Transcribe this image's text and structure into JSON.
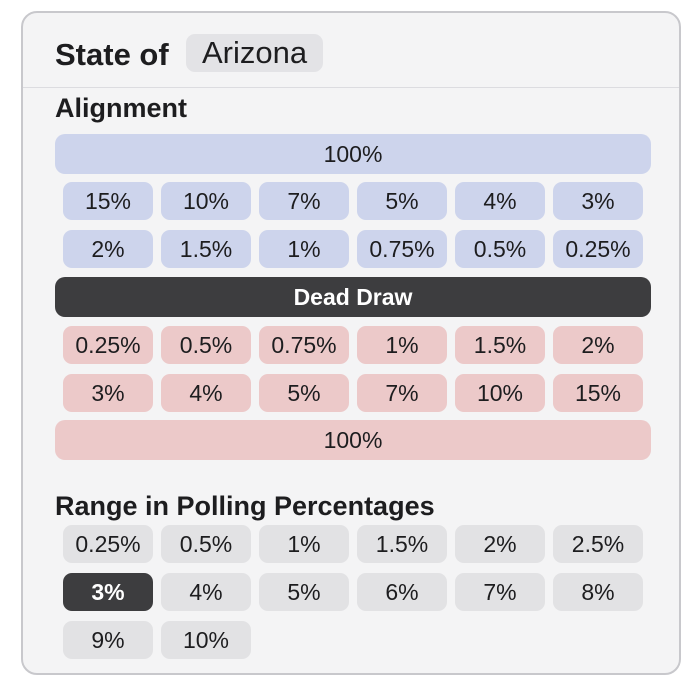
{
  "header": {
    "prefix": "State of",
    "state": "Arizona"
  },
  "alignment": {
    "title": "Alignment",
    "dem_total": "100%",
    "dem_rows": [
      [
        "15%",
        "10%",
        "7%",
        "5%",
        "4%",
        "3%"
      ],
      [
        "2%",
        "1.5%",
        "1%",
        "0.75%",
        "0.5%",
        "0.25%"
      ]
    ],
    "dead_draw": "Dead Draw",
    "rep_rows": [
      [
        "0.25%",
        "0.5%",
        "0.75%",
        "1%",
        "1.5%",
        "2%"
      ],
      [
        "3%",
        "4%",
        "5%",
        "7%",
        "10%",
        "15%"
      ]
    ],
    "rep_total": "100%",
    "colors": {
      "dem": "#cdd4ec",
      "rep": "#ecc9c9",
      "neutral": "#3d3d3f"
    }
  },
  "range": {
    "title": "Range in Polling Percentages",
    "rows": [
      [
        "0.25%",
        "0.5%",
        "1%",
        "1.5%",
        "2%",
        "2.5%"
      ],
      [
        "3%",
        "4%",
        "5%",
        "6%",
        "7%",
        "8%"
      ],
      [
        "9%",
        "10%"
      ]
    ],
    "selected": "3%"
  }
}
